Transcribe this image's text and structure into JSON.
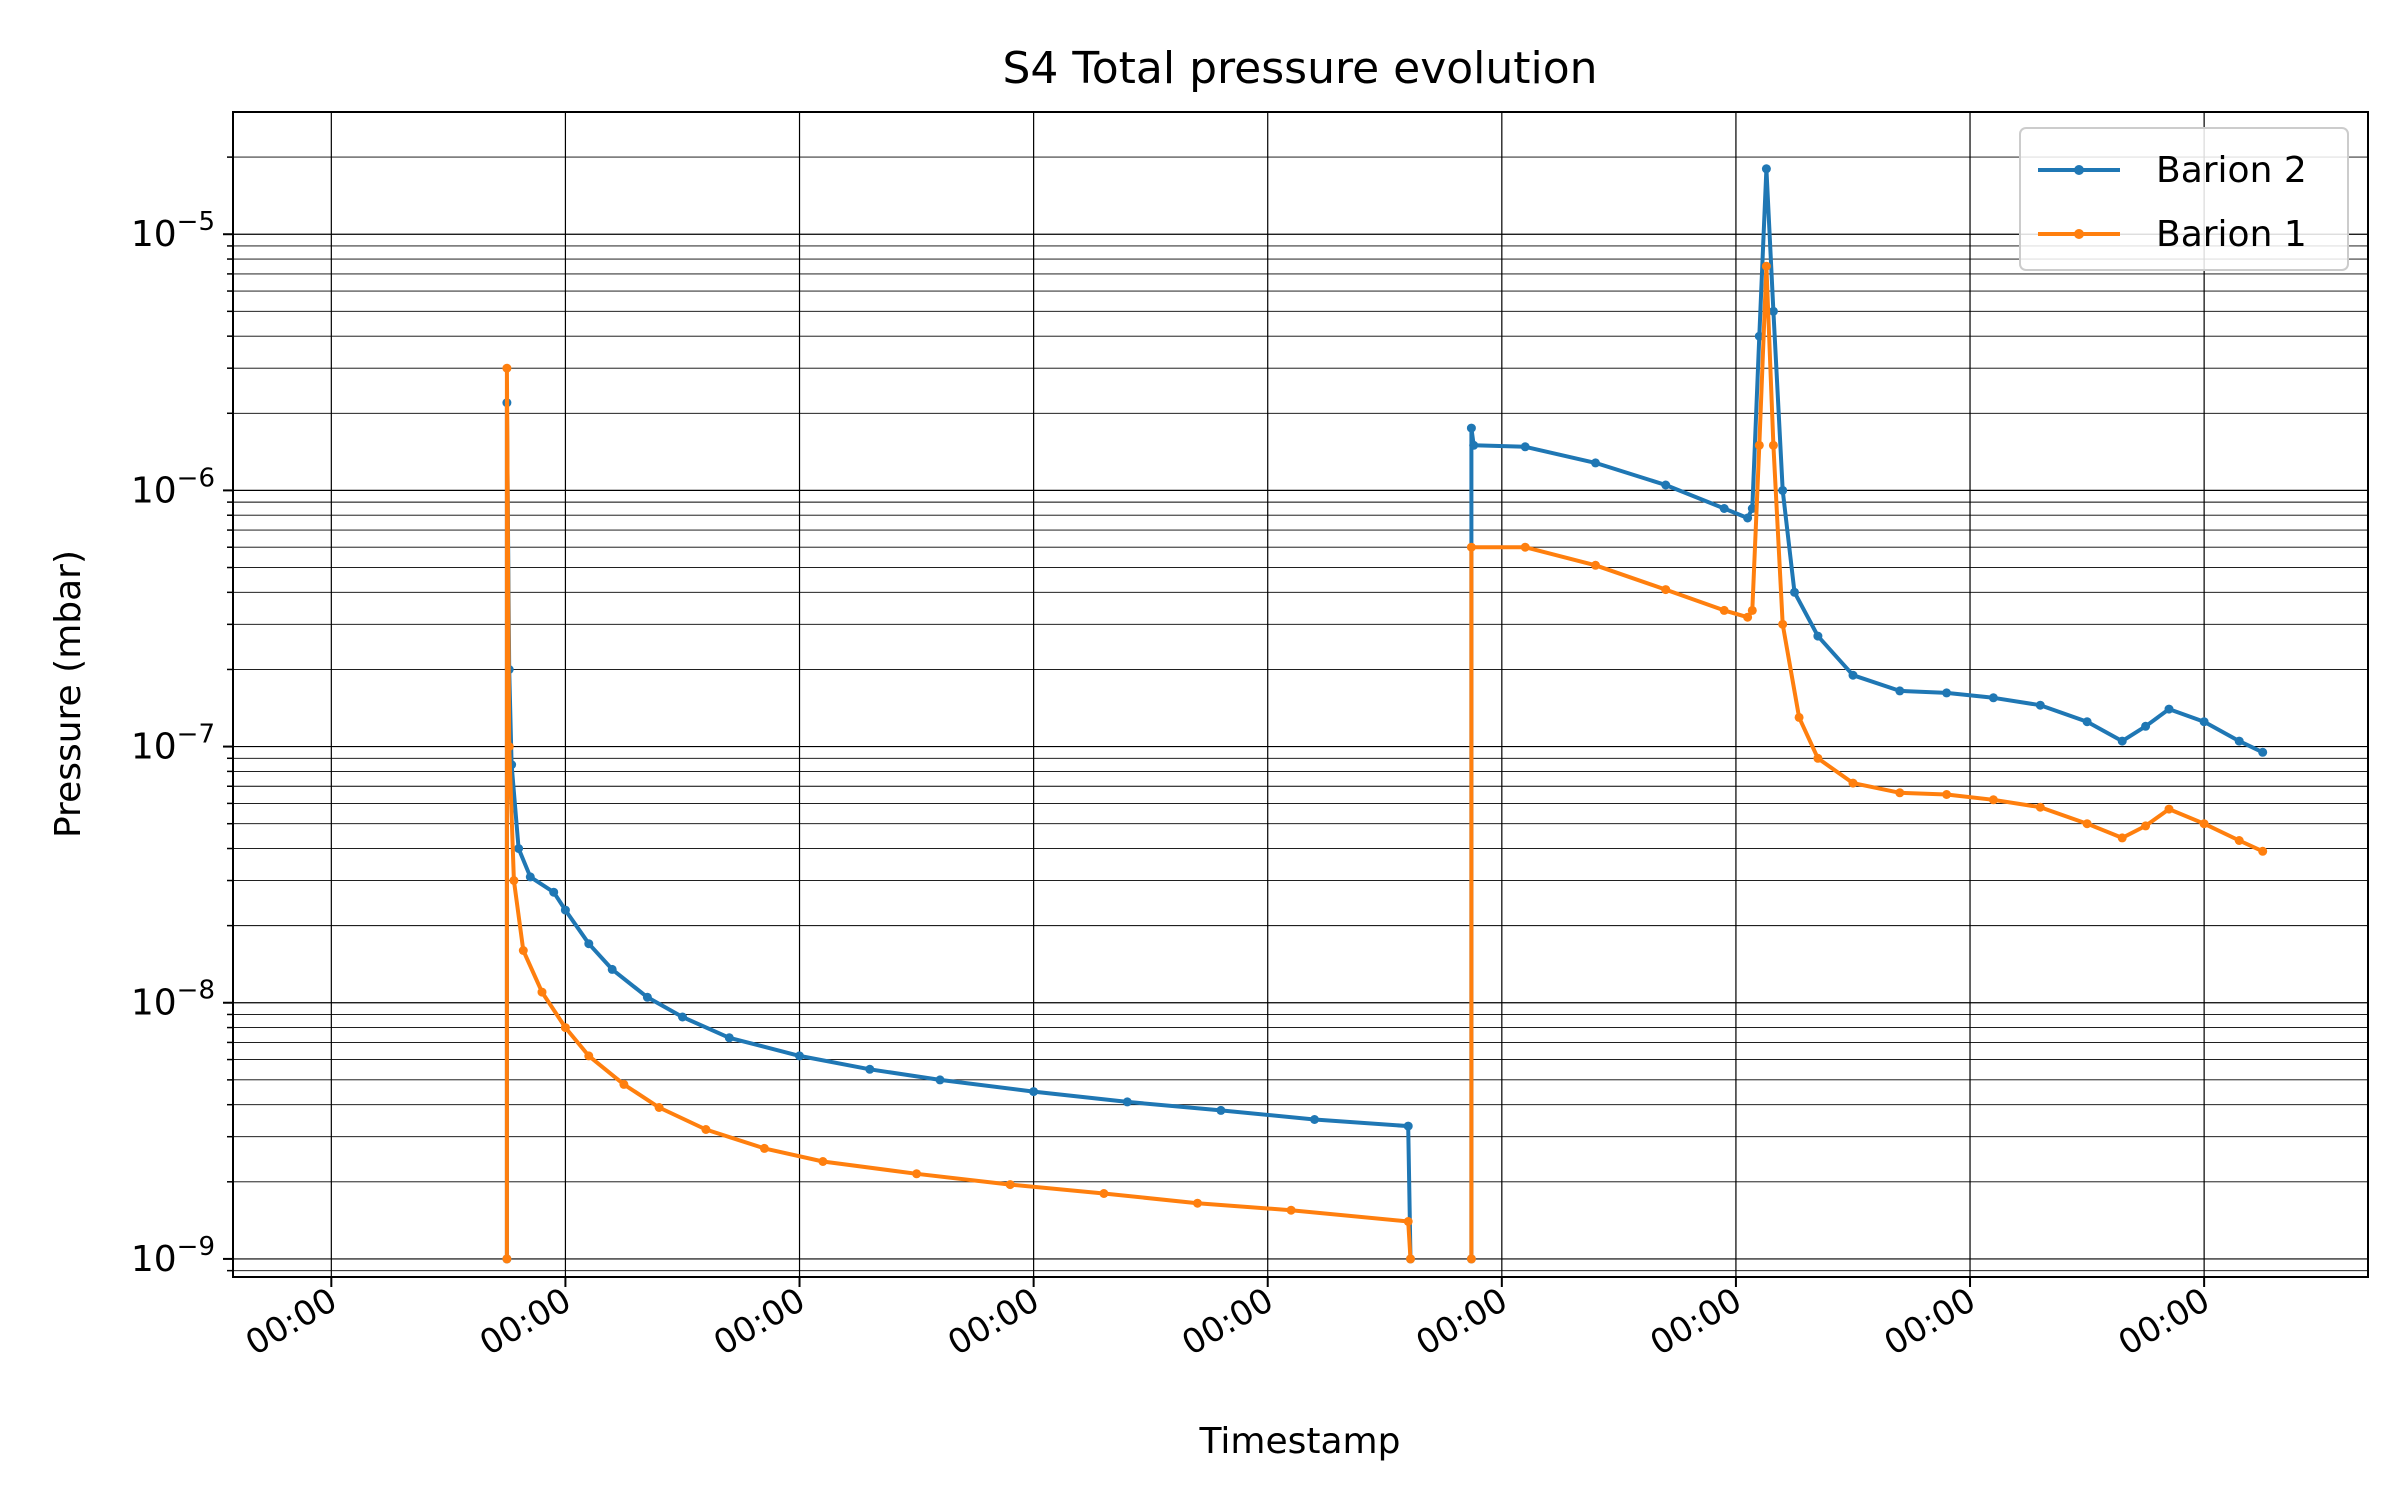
{
  "chart_data": {
    "type": "line",
    "title": "S4 Total pressure evolution",
    "xlabel": "Timestamp",
    "ylabel": "Pressure (mbar)",
    "yscale": "log",
    "ylim": [
      8.5e-10,
      3e-05
    ],
    "xlim": [
      -0.42,
      8.7
    ],
    "grid": true,
    "legend_position": "top-right",
    "x_tick_labels": [
      "00:00",
      "00:00",
      "00:00",
      "00:00",
      "00:00",
      "00:00",
      "00:00",
      "00:00",
      "00:00"
    ],
    "y_ticks": [
      {
        "value": 1e-09,
        "base": "10",
        "exp": "−9"
      },
      {
        "value": 1e-08,
        "base": "10",
        "exp": "−8"
      },
      {
        "value": 1e-07,
        "base": "10",
        "exp": "−7"
      },
      {
        "value": 1e-06,
        "base": "10",
        "exp": "−6"
      },
      {
        "value": 1e-05,
        "base": "10",
        "exp": "−5"
      }
    ],
    "series": [
      {
        "name": "Barion 2",
        "color": "#1f77b4",
        "segments": [
          [
            [
              0.75,
              1e-09
            ],
            [
              0.75,
              2.2e-06
            ],
            [
              0.76,
              2e-07
            ],
            [
              0.77,
              8.5e-08
            ],
            [
              0.8,
              4e-08
            ],
            [
              0.85,
              3.1e-08
            ],
            [
              0.95,
              2.7e-08
            ],
            [
              1.0,
              2.3e-08
            ],
            [
              1.1,
              1.7e-08
            ],
            [
              1.2,
              1.35e-08
            ],
            [
              1.35,
              1.05e-08
            ],
            [
              1.5,
              8.8e-09
            ],
            [
              1.7,
              7.3e-09
            ],
            [
              2.0,
              6.2e-09
            ],
            [
              2.3,
              5.5e-09
            ],
            [
              2.6,
              5e-09
            ],
            [
              3.0,
              4.5e-09
            ],
            [
              3.4,
              4.1e-09
            ],
            [
              3.8,
              3.8e-09
            ],
            [
              4.2,
              3.5e-09
            ],
            [
              4.6,
              3.3e-09
            ],
            [
              4.61,
              1e-09
            ]
          ],
          [
            [
              4.87,
              1e-09
            ],
            [
              4.87,
              1.75e-06
            ],
            [
              4.88,
              1.5e-06
            ],
            [
              5.1,
              1.48e-06
            ],
            [
              5.4,
              1.28e-06
            ],
            [
              5.7,
              1.05e-06
            ],
            [
              5.95,
              8.5e-07
            ],
            [
              6.05,
              7.8e-07
            ],
            [
              6.07,
              8.5e-07
            ],
            [
              6.1,
              4e-06
            ],
            [
              6.13,
              1.8e-05
            ],
            [
              6.16,
              5e-06
            ],
            [
              6.2,
              1e-06
            ],
            [
              6.25,
              4e-07
            ],
            [
              6.35,
              2.7e-07
            ],
            [
              6.5,
              1.9e-07
            ],
            [
              6.7,
              1.65e-07
            ],
            [
              6.9,
              1.62e-07
            ],
            [
              7.1,
              1.55e-07
            ],
            [
              7.3,
              1.45e-07
            ],
            [
              7.5,
              1.25e-07
            ],
            [
              7.65,
              1.05e-07
            ],
            [
              7.75,
              1.2e-07
            ],
            [
              7.85,
              1.4e-07
            ],
            [
              8.0,
              1.25e-07
            ],
            [
              8.15,
              1.05e-07
            ],
            [
              8.25,
              9.5e-08
            ]
          ]
        ]
      },
      {
        "name": "Barion 1",
        "color": "#ff7f0e",
        "segments": [
          [
            [
              0.75,
              1e-09
            ],
            [
              0.75,
              3e-06
            ],
            [
              0.76,
              1e-07
            ],
            [
              0.78,
              3e-08
            ],
            [
              0.82,
              1.6e-08
            ],
            [
              0.9,
              1.1e-08
            ],
            [
              1.0,
              8e-09
            ],
            [
              1.1,
              6.2e-09
            ],
            [
              1.25,
              4.8e-09
            ],
            [
              1.4,
              3.9e-09
            ],
            [
              1.6,
              3.2e-09
            ],
            [
              1.85,
              2.7e-09
            ],
            [
              2.1,
              2.4e-09
            ],
            [
              2.5,
              2.15e-09
            ],
            [
              2.9,
              1.95e-09
            ],
            [
              3.3,
              1.8e-09
            ],
            [
              3.7,
              1.65e-09
            ],
            [
              4.1,
              1.55e-09
            ],
            [
              4.6,
              1.4e-09
            ],
            [
              4.61,
              1e-09
            ]
          ],
          [
            [
              4.87,
              1e-09
            ],
            [
              4.87,
              6e-07
            ],
            [
              5.1,
              6e-07
            ],
            [
              5.4,
              5.1e-07
            ],
            [
              5.7,
              4.1e-07
            ],
            [
              5.95,
              3.4e-07
            ],
            [
              6.05,
              3.2e-07
            ],
            [
              6.07,
              3.4e-07
            ],
            [
              6.1,
              1.5e-06
            ],
            [
              6.13,
              7.5e-06
            ],
            [
              6.16,
              1.5e-06
            ],
            [
              6.2,
              3e-07
            ],
            [
              6.27,
              1.3e-07
            ],
            [
              6.35,
              9e-08
            ],
            [
              6.5,
              7.2e-08
            ],
            [
              6.7,
              6.6e-08
            ],
            [
              6.9,
              6.5e-08
            ],
            [
              7.1,
              6.2e-08
            ],
            [
              7.3,
              5.8e-08
            ],
            [
              7.5,
              5e-08
            ],
            [
              7.65,
              4.4e-08
            ],
            [
              7.75,
              4.9e-08
            ],
            [
              7.85,
              5.7e-08
            ],
            [
              8.0,
              5e-08
            ],
            [
              8.15,
              4.3e-08
            ],
            [
              8.25,
              3.9e-08
            ]
          ]
        ]
      }
    ]
  }
}
